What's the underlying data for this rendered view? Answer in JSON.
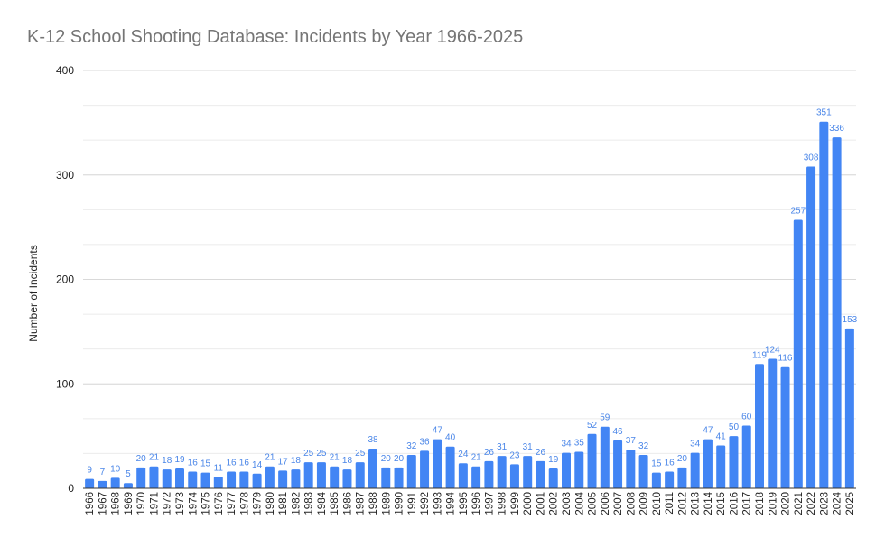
{
  "chart_data": {
    "type": "bar",
    "title": "K-12 School Shooting Database: Incidents by Year 1966-2025",
    "xlabel": "",
    "ylabel": "Number of Incidents",
    "ylim": [
      0,
      400
    ],
    "yticks": [
      0,
      100,
      200,
      300,
      400
    ],
    "grid": true,
    "bar_color": "#4285f4",
    "label_color": "#4a86e8",
    "categories": [
      "1966",
      "1967",
      "1968",
      "1969",
      "1970",
      "1971",
      "1972",
      "1973",
      "1974",
      "1975",
      "1976",
      "1977",
      "1978",
      "1979",
      "1980",
      "1981",
      "1982",
      "1983",
      "1984",
      "1985",
      "1986",
      "1987",
      "1988",
      "1989",
      "1990",
      "1991",
      "1992",
      "1993",
      "1994",
      "1995",
      "1996",
      "1997",
      "1998",
      "1999",
      "2000",
      "2001",
      "2002",
      "2003",
      "2004",
      "2005",
      "2006",
      "2007",
      "2008",
      "2009",
      "2010",
      "2011",
      "2012",
      "2013",
      "2014",
      "2015",
      "2016",
      "2017",
      "2018",
      "2019",
      "2020",
      "2021",
      "2022",
      "2023",
      "2024",
      "2025"
    ],
    "values": [
      9,
      7,
      10,
      5,
      20,
      21,
      18,
      19,
      16,
      15,
      11,
      16,
      16,
      14,
      21,
      17,
      18,
      25,
      25,
      21,
      18,
      25,
      38,
      20,
      20,
      32,
      36,
      47,
      40,
      24,
      21,
      26,
      31,
      23,
      31,
      26,
      19,
      34,
      35,
      52,
      59,
      46,
      37,
      32,
      15,
      16,
      20,
      34,
      47,
      41,
      50,
      60,
      119,
      124,
      116,
      257,
      308,
      351,
      336,
      153
    ]
  }
}
